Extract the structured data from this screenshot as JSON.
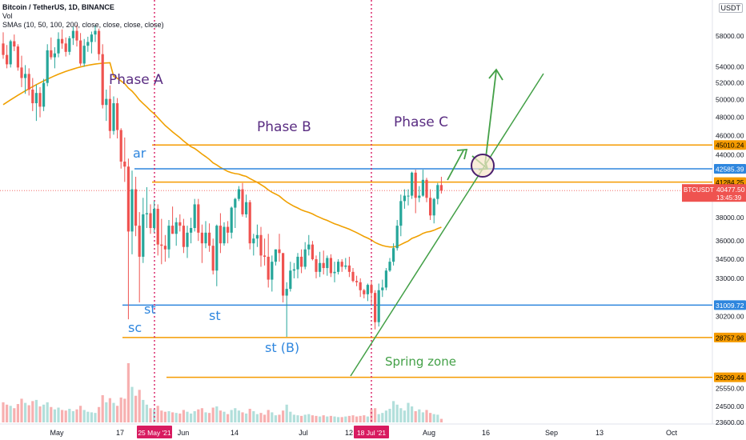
{
  "header": {
    "symbol_line": "Bitcoin / TetherUS, 1D, BINANCE",
    "vol_label": "Vol",
    "sma_label": "SMAs (10, 50, 100, 200, close, close, close, close)",
    "currency": "USDT"
  },
  "colors": {
    "up": "#26a69a",
    "down": "#ef5350",
    "vol_up": "#b2dfdb",
    "vol_down": "#f7b0b0",
    "sma": "#f0a000",
    "orange_line": "#f59b00",
    "blue_line": "#2e86de",
    "red_vline": "#d81b60",
    "trend": "#43a047",
    "annotation_blue": "#2e86de",
    "annotation_purple": "#5a2d82",
    "annotation_green": "#43a047"
  },
  "chart_data": {
    "type": "candlestick",
    "y_axis": {
      "ticks": [
        "58000.00",
        "54000.00",
        "52000.00",
        "50000.00",
        "48000.00",
        "46000.00",
        "44000.00",
        "38000.00",
        "36000.00",
        "34500.00",
        "33000.00",
        "30200.00",
        "25550.00",
        "24500.00",
        "23600.00"
      ],
      "scale": "log"
    },
    "x_axis": {
      "ticks": [
        "May",
        "17",
        "Jun",
        "14",
        "Jul",
        "12",
        "Aug",
        "16",
        "Sep",
        "13",
        "Oct"
      ]
    },
    "horizontal_levels": [
      {
        "label": "45010.24",
        "color": "orange"
      },
      {
        "label": "42585.39",
        "color": "blue"
      },
      {
        "label": "41284.25",
        "color": "orange"
      },
      {
        "label": "31009.72",
        "color": "blue"
      },
      {
        "label": "28757.96",
        "color": "orange"
      },
      {
        "label": "26209.44",
        "color": "orange"
      }
    ],
    "price_tag": {
      "symbol": "BTCUSDT",
      "price": "40477.50",
      "countdown": "13:45:39"
    },
    "vertical_markers": [
      "25 May '21",
      "18 Jul '21"
    ],
    "annotations": [
      "Phase A",
      "Phase B",
      "Phase C",
      "ar",
      "st",
      "sc",
      "st (B)",
      "Spring zone"
    ],
    "candles": [
      [
        57000,
        58500,
        55000,
        55500
      ],
      [
        55500,
        56800,
        53800,
        54300
      ],
      [
        54300,
        57500,
        53900,
        57300
      ],
      [
        57300,
        58200,
        56000,
        56600
      ],
      [
        56600,
        56900,
        53500,
        53900
      ],
      [
        53900,
        55400,
        51500,
        52600
      ],
      [
        52600,
        54200,
        50700,
        53100
      ],
      [
        53100,
        53800,
        50500,
        51200
      ],
      [
        51200,
        52600,
        48700,
        49600
      ],
      [
        49600,
        51800,
        47600,
        50800
      ],
      [
        50800,
        51500,
        48000,
        49200
      ],
      [
        49200,
        52500,
        48700,
        52000
      ],
      [
        52000,
        56900,
        51600,
        56100
      ],
      [
        56100,
        57800,
        54900,
        55200
      ],
      [
        55200,
        56500,
        53800,
        55700
      ],
      [
        55700,
        58500,
        55200,
        57600
      ],
      [
        57600,
        58900,
        56300,
        57000
      ],
      [
        57000,
        57800,
        55300,
        55900
      ],
      [
        55900,
        58000,
        55500,
        57700
      ],
      [
        57700,
        59300,
        56800,
        58700
      ],
      [
        58700,
        59500,
        56600,
        57400
      ],
      [
        57400,
        58400,
        54100,
        54400
      ],
      [
        54400,
        57600,
        54000,
        56700
      ],
      [
        56700,
        57900,
        55900,
        57200
      ],
      [
        57200,
        58600,
        55700,
        58200
      ],
      [
        58200,
        59400,
        57200,
        58700
      ],
      [
        58700,
        59000,
        54800,
        55600
      ],
      [
        55600,
        56900,
        49000,
        49400
      ],
      [
        49400,
        51200,
        47600,
        50100
      ],
      [
        50100,
        51700,
        45700,
        46500
      ],
      [
        46500,
        50400,
        46100,
        49600
      ],
      [
        49600,
        50200,
        45700,
        46600
      ],
      [
        46600,
        46800,
        42600,
        43300
      ],
      [
        43300,
        45800,
        41300,
        42800
      ],
      [
        42800,
        43600,
        30000,
        36800
      ],
      [
        36800,
        42400,
        34900,
        40600
      ],
      [
        40600,
        41800,
        36400,
        37300
      ],
      [
        37300,
        38500,
        31200,
        34700
      ],
      [
        34700,
        39800,
        34200,
        38300
      ],
      [
        38300,
        40800,
        37100,
        38400
      ],
      [
        38400,
        39200,
        36600,
        37100
      ],
      [
        37100,
        39500,
        36700,
        38800
      ],
      [
        38800,
        39200,
        34800,
        35700
      ],
      [
        35700,
        37900,
        34100,
        35600
      ],
      [
        35600,
        36500,
        34300,
        35300
      ],
      [
        35300,
        37800,
        34600,
        37300
      ],
      [
        37300,
        39000,
        36600,
        36600
      ],
      [
        36600,
        38000,
        35600,
        37600
      ],
      [
        37600,
        38300,
        36800,
        37300
      ],
      [
        37300,
        37900,
        35000,
        35500
      ],
      [
        35500,
        37300,
        34600,
        36700
      ],
      [
        36700,
        38000,
        35800,
        37100
      ],
      [
        37100,
        39700,
        36800,
        39200
      ],
      [
        39200,
        39700,
        36000,
        36700
      ],
      [
        36700,
        37400,
        34200,
        35800
      ],
      [
        35800,
        37700,
        35400,
        36700
      ],
      [
        36700,
        37500,
        35100,
        35600
      ],
      [
        35600,
        36200,
        33300,
        33600
      ],
      [
        33600,
        37400,
        32400,
        37300
      ],
      [
        37300,
        38400,
        35000,
        35800
      ],
      [
        35800,
        37600,
        35600,
        37200
      ],
      [
        37200,
        37700,
        35800,
        36700
      ],
      [
        36700,
        39000,
        36200,
        38900
      ],
      [
        38900,
        39800,
        37100,
        39700
      ],
      [
        39700,
        40900,
        39500,
        40600
      ],
      [
        40600,
        41200,
        38100,
        38300
      ],
      [
        38300,
        40100,
        38000,
        39400
      ],
      [
        39400,
        39600,
        35300,
        35800
      ],
      [
        35800,
        36600,
        34800,
        36200
      ],
      [
        36200,
        37400,
        35500,
        36500
      ],
      [
        36500,
        37200,
        33900,
        34800
      ],
      [
        34800,
        36200,
        34000,
        34700
      ],
      [
        34700,
        36600,
        32300,
        32900
      ],
      [
        32900,
        34800,
        32000,
        34300
      ],
      [
        34300,
        35300,
        34000,
        35300
      ],
      [
        35300,
        36600,
        34300,
        35000
      ],
      [
        35000,
        35000,
        31200,
        31700
      ],
      [
        31700,
        32700,
        28800,
        32200
      ],
      [
        32200,
        34300,
        32000,
        33600
      ],
      [
        33600,
        34200,
        33000,
        33700
      ],
      [
        33700,
        35000,
        33000,
        34700
      ],
      [
        34700,
        35300,
        33400,
        33900
      ],
      [
        33900,
        35900,
        33700,
        35300
      ],
      [
        35300,
        36500,
        34800,
        35700
      ],
      [
        35700,
        36000,
        34400,
        34500
      ],
      [
        34500,
        34800,
        33000,
        33500
      ],
      [
        33500,
        35100,
        33100,
        34200
      ],
      [
        34200,
        35200,
        33300,
        33800
      ],
      [
        33800,
        34800,
        33200,
        34600
      ],
      [
        34600,
        34900,
        33100,
        33400
      ],
      [
        33400,
        34300,
        32700,
        33500
      ],
      [
        33500,
        34500,
        33300,
        34300
      ],
      [
        34300,
        34500,
        33500,
        33900
      ],
      [
        33900,
        34600,
        33700,
        34000
      ],
      [
        34000,
        34700,
        33100,
        33500
      ],
      [
        33500,
        33800,
        32700,
        32800
      ],
      [
        32800,
        33200,
        32400,
        32700
      ],
      [
        32700,
        33000,
        31600,
        32100
      ],
      [
        32100,
        32200,
        31500,
        31800
      ],
      [
        31800,
        32600,
        31300,
        32500
      ],
      [
        32500,
        32800,
        31100,
        31900
      ],
      [
        31900,
        32100,
        29300,
        29800
      ],
      [
        29800,
        32600,
        29500,
        32100
      ],
      [
        32100,
        32900,
        31600,
        32300
      ],
      [
        32300,
        33800,
        32100,
        33600
      ],
      [
        33600,
        34600,
        33500,
        34300
      ],
      [
        34300,
        35800,
        34000,
        35400
      ],
      [
        35400,
        37800,
        35200,
        37300
      ],
      [
        37300,
        40100,
        36400,
        39500
      ],
      [
        39500,
        40600,
        38800,
        40000
      ],
      [
        40000,
        40600,
        39100,
        40000
      ],
      [
        40000,
        42300,
        39700,
        42200
      ],
      [
        42200,
        42500,
        38400,
        39800
      ],
      [
        39800,
        40900,
        39400,
        40000
      ],
      [
        40000,
        42500,
        39900,
        41500
      ],
      [
        41500,
        41700,
        39400,
        39800
      ],
      [
        39800,
        40600,
        37800,
        38200
      ],
      [
        38200,
        39800,
        37500,
        39700
      ],
      [
        39700,
        41200,
        39200,
        41000
      ],
      [
        41000,
        41800,
        40200,
        40477
      ]
    ],
    "volumes": [
      0.34,
      0.3,
      0.28,
      0.24,
      0.31,
      0.4,
      0.33,
      0.29,
      0.36,
      0.38,
      0.27,
      0.3,
      0.34,
      0.26,
      0.22,
      0.25,
      0.21,
      0.2,
      0.23,
      0.19,
      0.22,
      0.28,
      0.21,
      0.18,
      0.17,
      0.16,
      0.26,
      0.46,
      0.34,
      0.41,
      0.33,
      0.28,
      0.42,
      0.4,
      1.0,
      0.6,
      0.45,
      0.55,
      0.38,
      0.3,
      0.24,
      0.22,
      0.28,
      0.2,
      0.18,
      0.19,
      0.17,
      0.16,
      0.15,
      0.21,
      0.18,
      0.15,
      0.19,
      0.22,
      0.24,
      0.17,
      0.16,
      0.25,
      0.27,
      0.2,
      0.18,
      0.14,
      0.21,
      0.24,
      0.2,
      0.17,
      0.15,
      0.23,
      0.19,
      0.14,
      0.16,
      0.13,
      0.21,
      0.17,
      0.12,
      0.13,
      0.2,
      0.3,
      0.18,
      0.13,
      0.12,
      0.11,
      0.13,
      0.14,
      0.12,
      0.11,
      0.1,
      0.12,
      0.1,
      0.11,
      0.1,
      0.09,
      0.09,
      0.1,
      0.11,
      0.12,
      0.1,
      0.11,
      0.12,
      0.1,
      0.22,
      0.24,
      0.14,
      0.16,
      0.2,
      0.23,
      0.36,
      0.3,
      0.24,
      0.2,
      0.33,
      0.27,
      0.19,
      0.22,
      0.17,
      0.21,
      0.16,
      0.14,
      0.13,
      0.06
    ]
  }
}
